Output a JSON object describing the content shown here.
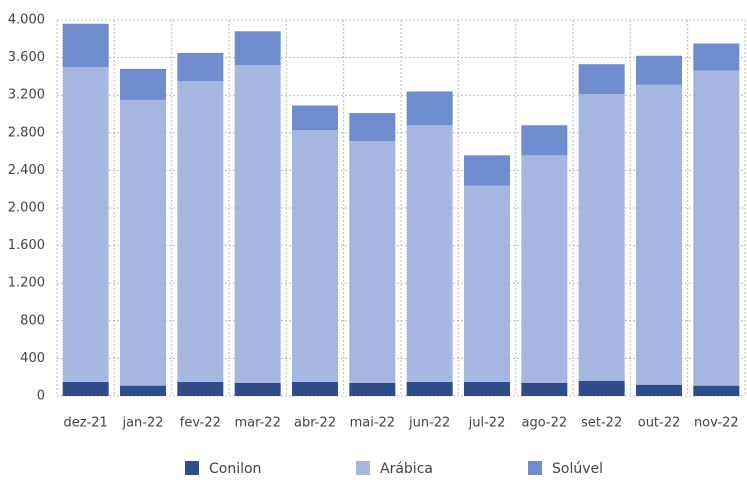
{
  "chart_data": {
    "type": "stacked_bar",
    "categories": [
      "dez-21",
      "jan-22",
      "fev-22",
      "mar-22",
      "abr-22",
      "mai-22",
      "jun-22",
      "jul-22",
      "ago-22",
      "set-22",
      "out-22",
      "nov-22"
    ],
    "series": [
      {
        "name": "Conilon",
        "color": "#2e4b8a",
        "values": [
          150,
          110,
          150,
          140,
          150,
          140,
          150,
          150,
          140,
          160,
          120,
          110
        ]
      },
      {
        "name": "Arábica",
        "color": "#a6b6e0",
        "values": [
          3350,
          3040,
          3200,
          3380,
          2680,
          2570,
          2730,
          2090,
          2420,
          3050,
          3190,
          3350
        ]
      },
      {
        "name": "Solúvel",
        "color": "#6f8ccc",
        "values": [
          460,
          330,
          300,
          360,
          260,
          300,
          360,
          320,
          320,
          320,
          310,
          290
        ]
      }
    ],
    "ylim": [
      0,
      4000
    ],
    "yticks": [
      0,
      400,
      800,
      {
        "value": 1200,
        "label": "1.200"
      },
      {
        "value": 1600,
        "label": "1.600"
      },
      {
        "value": 2000,
        "label": "2.000"
      },
      {
        "value": 2400,
        "label": "2.400"
      },
      {
        "value": 2800,
        "label": "2.800"
      },
      {
        "value": 3200,
        "label": "3.200"
      },
      {
        "value": 3600,
        "label": "3.600"
      },
      {
        "value": 4000,
        "label": "4.000"
      }
    ],
    "grid": true,
    "legend": "bottom"
  }
}
